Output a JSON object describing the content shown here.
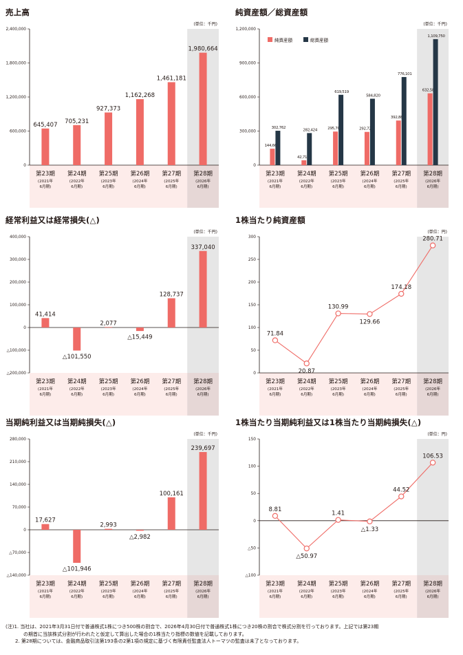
{
  "colors": {
    "bar_red": "#ef6b66",
    "bar_navy": "#253746",
    "line_red": "#ef6b66",
    "period_band": "#fdecea",
    "forecast_band": "#e6e6e6",
    "forecast_period_band": "#e6d7d6",
    "axis": "#231815"
  },
  "charts": [
    {
      "id": "sales",
      "title": "売上高",
      "unit": "(単位：千円)",
      "type": "bar",
      "ylim": [
        0,
        2400000
      ],
      "yticks": [
        0,
        600000,
        1200000,
        1800000,
        2400000
      ],
      "ytick_labels": [
        "0",
        "600,000",
        "1,200,000",
        "1,800,000",
        "2,400,000"
      ],
      "series": [
        {
          "values": [
            645407,
            705231,
            927373,
            1162268,
            1461181,
            1980664
          ],
          "labels": [
            "645,407",
            "705,231",
            "927,373",
            "1,162,268",
            "1,461,181",
            "1,980,664"
          ]
        }
      ]
    },
    {
      "id": "assets",
      "title": "純資産額／総資産額",
      "unit": "(単位：千円)",
      "type": "bar",
      "ylim": [
        0,
        1200000
      ],
      "yticks": [
        0,
        300000,
        600000,
        900000,
        1200000
      ],
      "ytick_labels": [
        "0",
        "300,000",
        "600,000",
        "900,000",
        "1,200,000"
      ],
      "legend": [
        "純資産額",
        "総資産額"
      ],
      "series": [
        {
          "name": "純資産額",
          "values": [
            144661,
            42715,
            295706,
            292725,
            392887,
            632584
          ],
          "labels": [
            "144,661",
            "42,715",
            "295,706",
            "292,725",
            "392,887",
            "632,584"
          ]
        },
        {
          "name": "総資産額",
          "values": [
            302762,
            282424,
            619519,
            584820,
            776101,
            1109750
          ],
          "labels": [
            "302,762",
            "282,424",
            "619,519",
            "584,820",
            "776,101",
            "1,109,750"
          ]
        }
      ]
    },
    {
      "id": "ordinary",
      "title": "経常利益又は経常損失(△)",
      "unit": "(単位：千円)",
      "type": "bar",
      "ylim": [
        -200000,
        400000
      ],
      "yticks": [
        -200000,
        -100000,
        0,
        100000,
        200000,
        300000,
        400000
      ],
      "ytick_labels": [
        "△200,000",
        "△100,000",
        "0",
        "100,000",
        "200,000",
        "300,000",
        "400,000"
      ],
      "series": [
        {
          "values": [
            41414,
            -101550,
            2077,
            -15449,
            128737,
            337040
          ],
          "labels": [
            "41,414",
            "△101,550",
            "2,077",
            "△15,449",
            "128,737",
            "337,040"
          ]
        }
      ]
    },
    {
      "id": "bps",
      "title": "1株当たり純資産額",
      "unit": "(単位：円)",
      "type": "line",
      "ylim": [
        0,
        300
      ],
      "yticks": [
        0,
        50,
        100,
        150,
        200,
        250,
        300
      ],
      "ytick_labels": [
        "0",
        "50",
        "100",
        "150",
        "200",
        "250",
        "300"
      ],
      "series": [
        {
          "values": [
            71.84,
            20.87,
            130.99,
            129.66,
            174.18,
            280.71
          ],
          "labels": [
            "71.84",
            "20.87",
            "130.99",
            "129.66",
            "174.18",
            "280.71"
          ]
        }
      ]
    },
    {
      "id": "netincome",
      "title": "当期純利益又は当期純損失(△)",
      "unit": "(単位：千円)",
      "type": "bar",
      "ylim": [
        -140000,
        280000
      ],
      "yticks": [
        -140000,
        -70000,
        0,
        70000,
        140000,
        210000,
        280000
      ],
      "ytick_labels": [
        "△140,000",
        "△70,000",
        "0",
        "70,000",
        "140,000",
        "210,000",
        "280,000"
      ],
      "series": [
        {
          "values": [
            17627,
            -101946,
            2993,
            -2982,
            100161,
            239697
          ],
          "labels": [
            "17,627",
            "△101,946",
            "2,993",
            "△2,982",
            "100,161",
            "239,697"
          ]
        }
      ]
    },
    {
      "id": "eps",
      "title": "1株当たり当期純利益又は1株当たり当期純損失(△)",
      "unit": "(単位：円)",
      "type": "line",
      "ylim": [
        -100,
        150
      ],
      "yticks": [
        -100,
        -50,
        0,
        50,
        100,
        150
      ],
      "ytick_labels": [
        "△100",
        "△50",
        "0",
        "50",
        "100",
        "150"
      ],
      "series": [
        {
          "values": [
            8.81,
            -50.97,
            1.41,
            -1.33,
            44.52,
            106.53
          ],
          "labels": [
            "8.81",
            "△50.97",
            "1.41",
            "△1.33",
            "44.52",
            "106.53"
          ]
        }
      ]
    }
  ],
  "periods": [
    {
      "name": "第23期",
      "year": "(2021年",
      "month": "6月期)"
    },
    {
      "name": "第24期",
      "year": "(2022年",
      "month": "6月期)"
    },
    {
      "name": "第25期",
      "year": "(2023年",
      "month": "6月期)"
    },
    {
      "name": "第26期",
      "year": "(2024年",
      "month": "6月期)"
    },
    {
      "name": "第27期",
      "year": "(2025年",
      "month": "6月期)"
    },
    {
      "name": "第28期",
      "year": "(2026年",
      "month": "6月期)"
    }
  ],
  "notes": [
    "(注)1. 当社は、2021年3月31日付で普通株式1株につき500株の割合で、2026年4月30日付で普通株式1株につき20株の割合で株式分割を行っております。上記では第23期",
    "の期首に当該株式分割が行われたと仮定して算出した場合の1株当たり指標の数値を記載しております。",
    "2. 第28期については、金融商品取引法第193条の2第1項の規定に基づく有限責任監査法人トーマツの監査は未了となっております。"
  ]
}
